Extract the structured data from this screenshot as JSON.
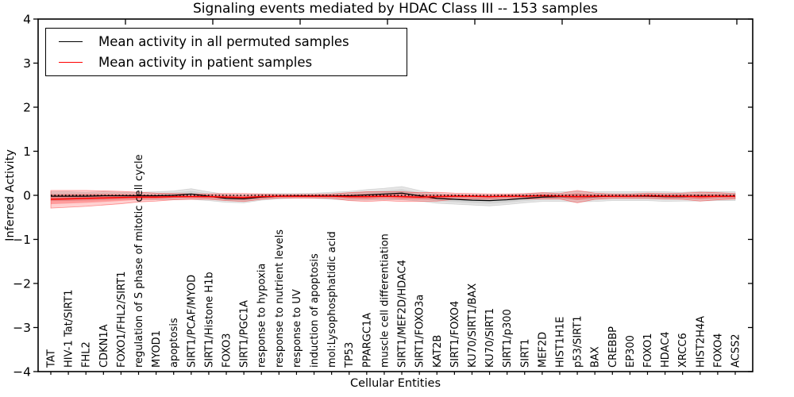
{
  "title": "Signaling events mediated by HDAC Class III -- 153 samples",
  "axes": {
    "ylabel": "Inferred Activity",
    "xlabel": "Cellular Entities",
    "ylim": [
      -4,
      4
    ],
    "yticks": [
      {
        "v": 4,
        "label": "4"
      },
      {
        "v": 3,
        "label": "3"
      },
      {
        "v": 2,
        "label": "2"
      },
      {
        "v": 1,
        "label": "1"
      },
      {
        "v": 0,
        "label": "0"
      },
      {
        "v": -1,
        "label": "−1"
      },
      {
        "v": -2,
        "label": "−2"
      },
      {
        "v": -3,
        "label": "−3"
      },
      {
        "v": -4,
        "label": "−4"
      }
    ]
  },
  "legend": {
    "position": "upper left",
    "items": [
      {
        "label": "Mean activity in all permuted samples",
        "color": "#000000"
      },
      {
        "label": "Mean activity in patient samples",
        "color": "#ff0000"
      }
    ]
  },
  "colors": {
    "permuted_line": "#000000",
    "patient_line": "#ff0000",
    "permuted_band": "rgba(0,0,0,0.10)",
    "permuted_band_inner": "rgba(0,0,0,0.08)",
    "patient_band": "rgba(255,0,0,0.18)",
    "patient_band_inner": "rgba(255,0,0,0.25)",
    "zero_line": "#000000"
  },
  "chart_data": {
    "type": "line",
    "title": "Signaling events mediated by HDAC Class III -- 153 samples",
    "xlabel": "Cellular Entities",
    "ylabel": "Inferred Activity",
    "ylim": [
      -4,
      4
    ],
    "grid": false,
    "legend_position": "upper left",
    "zero_reference_line": true,
    "categories": [
      "TAT",
      "HIV-1 Tat/SIRT1",
      "FHL2",
      "CDKN1A",
      "FOXO1/FHL2/SIRT1",
      "regulation of S phase of mitotic cell cycle",
      "MYOD1",
      "apoptosis",
      "SIRT1/PCAF/MYOD",
      "SIRT1/Histone H1b",
      "FOXO3",
      "SIRT1/PGC1A",
      "response to hypoxia",
      "response to nutrient levels",
      "response to UV",
      "induction of apoptosis",
      "mol:Lysophosphatidic acid",
      "TP53",
      "PPARGC1A",
      "muscle cell differentiation",
      "SIRT1/MEF2D/HDAC4",
      "SIRT1/FOXO3a",
      "KAT2B",
      "SIRT1/FOXO4",
      "KU70/SIRT1/BAX",
      "KU70/SIRT1",
      "SIRT1/p300",
      "SIRT1",
      "MEF2D",
      "HIST1H1E",
      "p53/SIRT1",
      "BAX",
      "CREBBP",
      "EP300",
      "FOXO1",
      "HDAC4",
      "XRCC6",
      "HIST2H4A",
      "FOXO4",
      "ACSS2"
    ],
    "series": [
      {
        "name": "Mean activity in all permuted samples",
        "color": "#000000",
        "values": [
          -0.02,
          -0.02,
          -0.02,
          -0.01,
          -0.01,
          -0.01,
          -0.01,
          0.0,
          0.03,
          -0.02,
          -0.07,
          -0.08,
          -0.04,
          -0.02,
          -0.01,
          -0.01,
          -0.01,
          -0.01,
          0.01,
          0.03,
          0.05,
          -0.01,
          -0.07,
          -0.09,
          -0.11,
          -0.12,
          -0.1,
          -0.07,
          -0.04,
          -0.03,
          -0.03,
          -0.03,
          -0.02,
          -0.02,
          -0.02,
          -0.03,
          -0.03,
          -0.02,
          -0.02,
          -0.02
        ]
      },
      {
        "name": "Mean activity in patient samples",
        "color": "#ff0000",
        "values": [
          -0.09,
          -0.08,
          -0.07,
          -0.06,
          -0.05,
          -0.04,
          -0.04,
          -0.03,
          -0.03,
          -0.03,
          -0.04,
          -0.05,
          -0.03,
          -0.02,
          -0.02,
          -0.02,
          -0.02,
          -0.03,
          -0.03,
          -0.02,
          -0.03,
          -0.04,
          -0.03,
          -0.02,
          -0.02,
          -0.03,
          -0.02,
          -0.02,
          -0.01,
          -0.02,
          -0.03,
          -0.02,
          -0.02,
          -0.02,
          -0.01,
          -0.02,
          -0.02,
          -0.03,
          -0.02,
          -0.02
        ]
      },
      {
        "name": "Std band half-width (permuted samples)",
        "color": "rgba(0,0,0,0.10)",
        "values": [
          0.1,
          0.1,
          0.09,
          0.09,
          0.08,
          0.08,
          0.09,
          0.1,
          0.12,
          0.1,
          0.09,
          0.09,
          0.07,
          0.06,
          0.05,
          0.06,
          0.08,
          0.1,
          0.12,
          0.13,
          0.15,
          0.12,
          0.11,
          0.11,
          0.11,
          0.12,
          0.11,
          0.1,
          0.1,
          0.11,
          0.12,
          0.11,
          0.1,
          0.1,
          0.1,
          0.11,
          0.1,
          0.11,
          0.1,
          0.1
        ]
      },
      {
        "name": "Std band half-width (patient samples)",
        "color": "rgba(255,0,0,0.18)",
        "values": [
          0.2,
          0.19,
          0.18,
          0.16,
          0.14,
          0.11,
          0.09,
          0.07,
          0.06,
          0.06,
          0.08,
          0.09,
          0.06,
          0.04,
          0.04,
          0.04,
          0.05,
          0.09,
          0.11,
          0.1,
          0.11,
          0.1,
          0.1,
          0.07,
          0.06,
          0.06,
          0.05,
          0.06,
          0.07,
          0.06,
          0.14,
          0.07,
          0.05,
          0.05,
          0.06,
          0.06,
          0.07,
          0.1,
          0.08,
          0.06
        ]
      }
    ]
  }
}
